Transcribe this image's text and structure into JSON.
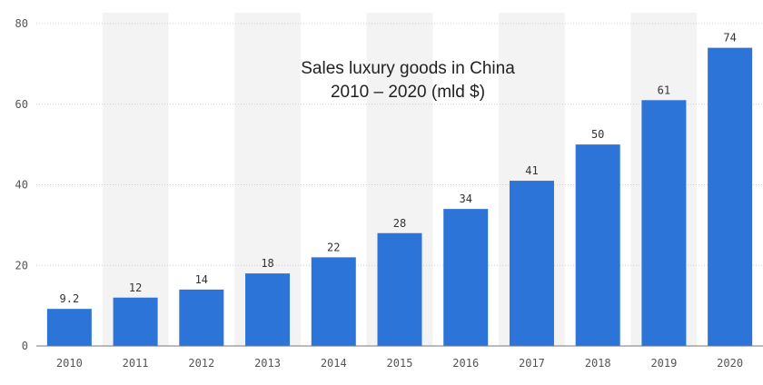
{
  "chart_data": {
    "type": "bar",
    "title_lines": [
      "Sales luxury goods in China",
      "2010 – 2020 (mld $)"
    ],
    "xlabel": "",
    "ylabel": "",
    "categories": [
      "2010",
      "2011",
      "2012",
      "2013",
      "2014",
      "2015",
      "2016",
      "2017",
      "2018",
      "2019",
      "2020"
    ],
    "values": [
      9.2,
      12,
      14,
      18,
      22,
      28,
      34,
      41,
      50,
      61,
      74
    ],
    "value_labels": [
      "9.2",
      "12",
      "14",
      "18",
      "22",
      "28",
      "34",
      "41",
      "50",
      "61",
      "74"
    ],
    "ylim": [
      0,
      80
    ],
    "yticks": [
      0,
      20,
      40,
      60,
      80
    ],
    "ytick_labels": [
      "0",
      "20",
      "40",
      "60",
      "80"
    ],
    "grid": true,
    "legend": "none",
    "colors": {
      "bar": "#2c74d8",
      "band": "#f3f3f3",
      "grid": "#cfcfcf",
      "axis": "#777777"
    }
  }
}
